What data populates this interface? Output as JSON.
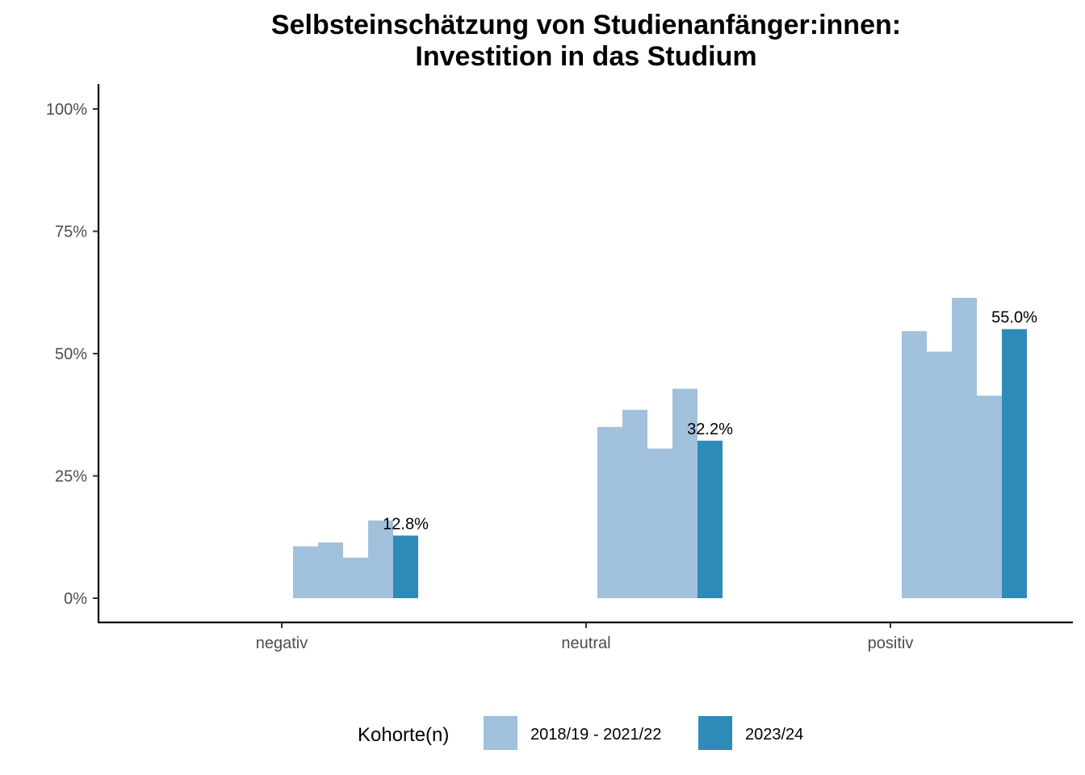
{
  "chart_data": {
    "type": "bar",
    "title": "Selbsteinschätzung von Studienanfänger:innen:",
    "subtitle": "Investition in das Studium",
    "categories": [
      "negativ",
      "neutral",
      "positiv"
    ],
    "ylim": [
      0,
      100
    ],
    "yticks": [
      {
        "value": 0,
        "label": "0%"
      },
      {
        "value": 25,
        "label": "25%"
      },
      {
        "value": 50,
        "label": "50%"
      },
      {
        "value": 75,
        "label": "75%"
      },
      {
        "value": 100,
        "label": "100%"
      }
    ],
    "grid": false,
    "legend": {
      "title": "Kohorte(n)",
      "position": "bottom",
      "entries": [
        {
          "label": "2018/19 - 2021/22",
          "color": "#a1c0dc"
        },
        {
          "label": "2023/24",
          "color": "#2e8bb8"
        }
      ]
    },
    "series": [
      {
        "color": "#a1c0dc",
        "values": [
          10.6,
          35.0,
          54.6
        ]
      },
      {
        "color": "#a1c0dc",
        "values": [
          11.4,
          38.5,
          50.4
        ]
      },
      {
        "color": "#a1c0dc",
        "values": [
          8.3,
          30.6,
          61.4
        ]
      },
      {
        "color": "#a1c0dc",
        "values": [
          15.9,
          42.8,
          41.4
        ]
      },
      {
        "color": "#2e8bb8",
        "values": [
          12.8,
          32.2,
          55.0
        ],
        "data_labels": [
          "12.8%",
          "32.2%",
          "55.0%"
        ]
      }
    ]
  }
}
